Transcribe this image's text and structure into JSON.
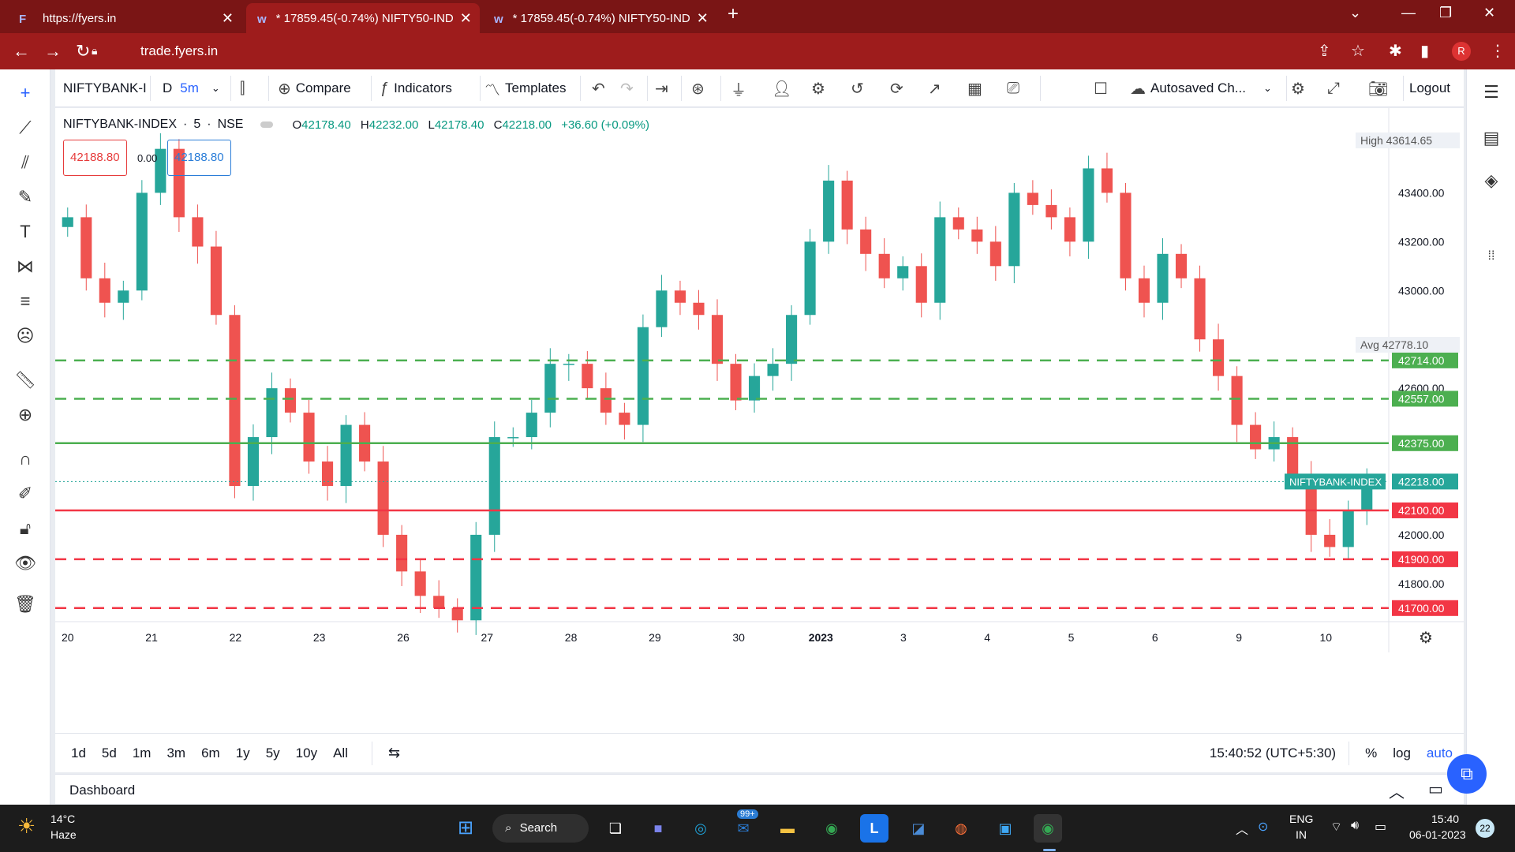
{
  "browser": {
    "tabs": [
      {
        "label": "https://fyers.in",
        "active": false
      },
      {
        "label": "* 17859.45(-0.74%) NIFTY50-IND",
        "active": true
      },
      {
        "label": "* 17859.45(-0.74%) NIFTY50-IND",
        "active": false
      }
    ],
    "url": "trade.fyers.in",
    "profile_initial": "R"
  },
  "toolbar": {
    "symbol": "NIFTYBANK-I",
    "period_d": "D",
    "interval": "5m",
    "compare": "Compare",
    "indicators": "Indicators",
    "templates": "Templates",
    "layout_name": "Autosaved Ch...",
    "logout": "Logout"
  },
  "chart": {
    "symbol_full": "NIFTYBANK-INDEX",
    "interval_num": "5",
    "exchange": "NSE",
    "open": "42178.40",
    "high": "42232.00",
    "low": "42178.40",
    "close": "42218.00",
    "change": "+36.60 (+0.09%)",
    "sell_price": "42188.80",
    "buy_price": "42188.80",
    "spread": "0.00",
    "high_label": "High",
    "high_value": "43614.65",
    "avg_label": "Avg",
    "avg_value": "42778.10",
    "last_label": "NIFTYBANK-INDEX",
    "last_value": "42218.00",
    "colors": {
      "up": "#26a69a",
      "down": "#ef5350",
      "green_line": "#4caf50",
      "red_line": "#f23645",
      "dashed_green": "#43a047",
      "dashed_red": "#f23645"
    }
  },
  "chart_data": {
    "type": "candlestick",
    "title": "NIFTYBANK-INDEX · 5 · NSE",
    "yticks": [
      "43400.00",
      "43200.00",
      "43000.00",
      "42600.00",
      "42000.00",
      "41800.00"
    ],
    "xticks": [
      "20",
      "21",
      "22",
      "23",
      "26",
      "27",
      "28",
      "29",
      "30",
      "2023",
      "3",
      "4",
      "5",
      "6",
      "9",
      "10"
    ],
    "hlines": [
      {
        "value": 42714.0,
        "label": "42714.00",
        "style": "dashed",
        "color": "green"
      },
      {
        "value": 42557.0,
        "label": "42557.00",
        "style": "dashed",
        "color": "green"
      },
      {
        "value": 42375.0,
        "label": "42375.00",
        "style": "solid",
        "color": "green"
      },
      {
        "value": 42100.0,
        "label": "42100.00",
        "style": "solid",
        "color": "red"
      },
      {
        "value": 41900.0,
        "label": "41900.00",
        "style": "dashed",
        "color": "red"
      },
      {
        "value": 41700.0,
        "label": "41700.00",
        "style": "dashed",
        "color": "red"
      }
    ],
    "ylim": [
      41680,
      43650
    ],
    "closes": [
      43300,
      43050,
      42950,
      43000,
      43400,
      43580,
      43300,
      43180,
      42900,
      42200,
      42400,
      42600,
      42500,
      42300,
      42200,
      42450,
      42300,
      42000,
      41850,
      41750,
      41700,
      41650,
      42000,
      42400,
      42400,
      42500,
      42700,
      42700,
      42600,
      42500,
      42450,
      42850,
      43000,
      42950,
      42900,
      42700,
      42550,
      42650,
      42700,
      42900,
      43200,
      43450,
      43250,
      43150,
      43050,
      43100,
      42950,
      43300,
      43250,
      43200,
      43100,
      43400,
      43350,
      43300,
      43200,
      43500,
      43400,
      43050,
      42950,
      43150,
      43050,
      42800,
      42650,
      42450,
      42350,
      42400,
      42250,
      42000,
      41950,
      42100,
      42220
    ]
  },
  "bottom": {
    "ranges": [
      "1d",
      "5d",
      "1m",
      "3m",
      "6m",
      "1y",
      "5y",
      "10y",
      "All"
    ],
    "time": "15:40:52 (UTC+5:30)",
    "pct": "%",
    "log": "log",
    "auto": "auto"
  },
  "dashboard": {
    "label": "Dashboard"
  },
  "taskbar": {
    "weather_temp": "14°C",
    "weather_text": "Haze",
    "search": "Search",
    "mail_badge": "99+",
    "lang1": "ENG",
    "lang2": "IN",
    "time": "15:40",
    "date": "06-01-2023",
    "notif_count": "22"
  }
}
